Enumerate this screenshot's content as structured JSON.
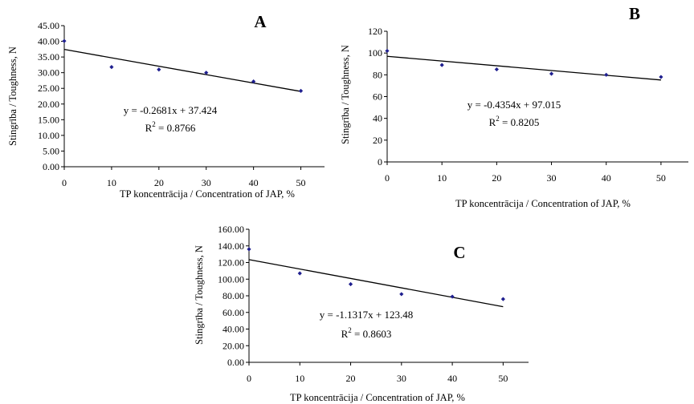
{
  "chart_data": [
    {
      "type": "scatter",
      "panel_label": "A",
      "xlabel": "TP koncentrācija / Concentration of JAP, %",
      "ylabel": "Stingrība / Toughness, N",
      "x": [
        0,
        10,
        20,
        30,
        40,
        50
      ],
      "y": [
        40.1,
        31.8,
        31.0,
        30.0,
        27.2,
        24.2
      ],
      "xlim": [
        0,
        55
      ],
      "ylim": [
        0,
        45
      ],
      "xticks": [
        0,
        10,
        20,
        30,
        40,
        50
      ],
      "xtick_labels": [
        "0",
        "10",
        "20",
        "30",
        "40",
        "50"
      ],
      "yticks": [
        0,
        5,
        10,
        15,
        20,
        25,
        30,
        35,
        40,
        45
      ],
      "ytick_labels": [
        "0.00",
        "5.00",
        "10.00",
        "15.00",
        "20.00",
        "25.00",
        "30.00",
        "35.00",
        "40.00",
        "45.00"
      ],
      "trendline": {
        "slope": -0.2681,
        "intercept": 37.424,
        "x_range": [
          0,
          50
        ]
      },
      "equation": "y = -0.2681x + 37.424",
      "r2_prefix": "R",
      "r2_sup": "2",
      "r2_value": " = 0.8766",
      "point_color": "#1f1f8f",
      "line_color": "#000000"
    },
    {
      "type": "scatter",
      "panel_label": "B",
      "xlabel": "TP koncentrācija / Concentration of JAP, %",
      "ylabel": "Stingrība / Toughness, N",
      "x": [
        0,
        10,
        20,
        30,
        40,
        50
      ],
      "y": [
        102,
        89,
        85,
        81,
        80,
        78
      ],
      "xlim": [
        0,
        55
      ],
      "ylim": [
        0,
        120
      ],
      "xticks": [
        0,
        10,
        20,
        30,
        40,
        50
      ],
      "xtick_labels": [
        "0",
        "10",
        "20",
        "30",
        "40",
        "50"
      ],
      "yticks": [
        0,
        20,
        40,
        60,
        80,
        100,
        120
      ],
      "ytick_labels": [
        "0",
        "20",
        "40",
        "60",
        "80",
        "100",
        "120"
      ],
      "trendline": {
        "slope": -0.4354,
        "intercept": 97.015,
        "x_range": [
          0,
          50
        ]
      },
      "equation": "y = -0.4354x + 97.015",
      "r2_prefix": "R",
      "r2_sup": "2",
      "r2_value": " = 0.8205",
      "point_color": "#1f1f8f",
      "line_color": "#000000"
    },
    {
      "type": "scatter",
      "panel_label": "C",
      "xlabel": "TP koncentrācija / Concentration of JAP, %",
      "ylabel": "Stingrība / Toughness, N",
      "x": [
        0,
        10,
        20,
        30,
        40,
        50
      ],
      "y": [
        136,
        107,
        94,
        82,
        79,
        76
      ],
      "xlim": [
        0,
        55
      ],
      "ylim": [
        0,
        160
      ],
      "xticks": [
        0,
        10,
        20,
        30,
        40,
        50
      ],
      "xtick_labels": [
        "0",
        "10",
        "20",
        "30",
        "40",
        "50"
      ],
      "yticks": [
        0,
        20,
        40,
        60,
        80,
        100,
        120,
        140,
        160
      ],
      "ytick_labels": [
        "0.00",
        "20.00",
        "40.00",
        "60.00",
        "80.00",
        "100.00",
        "120.00",
        "140.00",
        "160.00"
      ],
      "trendline": {
        "slope": -1.1317,
        "intercept": 123.48,
        "x_range": [
          0,
          50
        ]
      },
      "equation": "y = -1.1317x + 123.48",
      "r2_prefix": "R",
      "r2_sup": "2",
      "r2_value": " = 0.8603",
      "point_color": "#1f1f8f",
      "line_color": "#000000"
    }
  ]
}
